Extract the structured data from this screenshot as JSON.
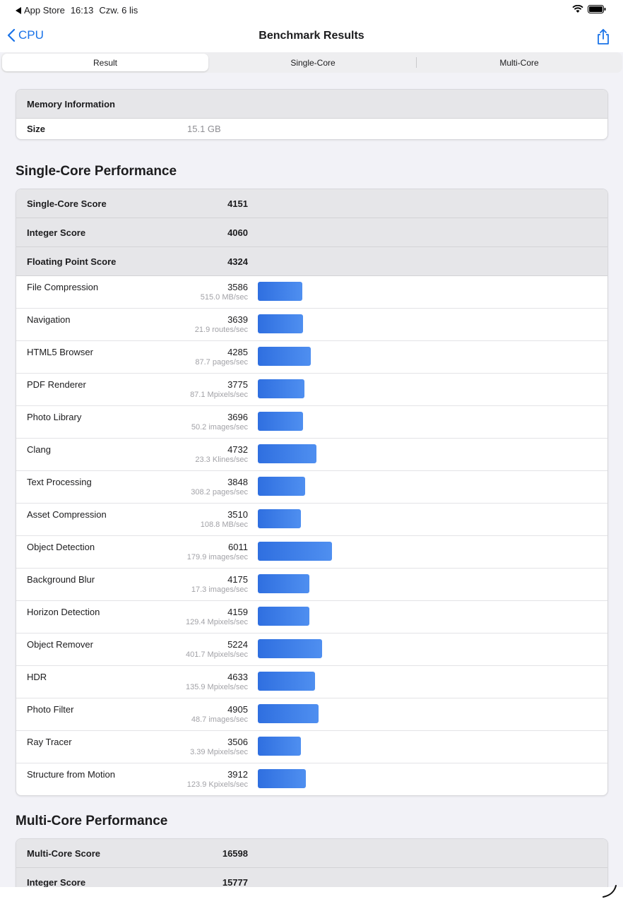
{
  "status": {
    "back_app": "App Store",
    "time": "16:13",
    "date": "Czw. 6 lis"
  },
  "nav": {
    "back_label": "CPU",
    "title": "Benchmark Results"
  },
  "tabs": [
    {
      "label": "Result",
      "active": true
    },
    {
      "label": "Single-Core",
      "active": false
    },
    {
      "label": "Multi-Core",
      "active": false
    }
  ],
  "memory": {
    "header": "Memory Information",
    "size_label": "Size",
    "size_value": "15.1 GB"
  },
  "single_core": {
    "section_title": "Single-Core Performance",
    "summary": [
      {
        "label": "Single-Core Score",
        "value": "4151"
      },
      {
        "label": "Integer Score",
        "value": "4060"
      },
      {
        "label": "Floating Point Score",
        "value": "4324"
      }
    ],
    "benchmarks": [
      {
        "name": "File Compression",
        "score": 3586,
        "rate": "515.0 MB/sec"
      },
      {
        "name": "Navigation",
        "score": 3639,
        "rate": "21.9 routes/sec"
      },
      {
        "name": "HTML5 Browser",
        "score": 4285,
        "rate": "87.7 pages/sec"
      },
      {
        "name": "PDF Renderer",
        "score": 3775,
        "rate": "87.1 Mpixels/sec"
      },
      {
        "name": "Photo Library",
        "score": 3696,
        "rate": "50.2 images/sec"
      },
      {
        "name": "Clang",
        "score": 4732,
        "rate": "23.3 Klines/sec"
      },
      {
        "name": "Text Processing",
        "score": 3848,
        "rate": "308.2 pages/sec"
      },
      {
        "name": "Asset Compression",
        "score": 3510,
        "rate": "108.8 MB/sec"
      },
      {
        "name": "Object Detection",
        "score": 6011,
        "rate": "179.9 images/sec"
      },
      {
        "name": "Background Blur",
        "score": 4175,
        "rate": "17.3 images/sec"
      },
      {
        "name": "Horizon Detection",
        "score": 4159,
        "rate": "129.4 Mpixels/sec"
      },
      {
        "name": "Object Remover",
        "score": 5224,
        "rate": "401.7 Mpixels/sec"
      },
      {
        "name": "HDR",
        "score": 4633,
        "rate": "135.9 Mpixels/sec"
      },
      {
        "name": "Photo Filter",
        "score": 4905,
        "rate": "48.7 images/sec"
      },
      {
        "name": "Ray Tracer",
        "score": 3506,
        "rate": "3.39 Mpixels/sec"
      },
      {
        "name": "Structure from Motion",
        "score": 3912,
        "rate": "123.9 Kpixels/sec"
      }
    ]
  },
  "multi_core": {
    "section_title": "Multi-Core Performance",
    "summary": [
      {
        "label": "Multi-Core Score",
        "value": "16598"
      },
      {
        "label": "Integer Score",
        "value": "15777"
      }
    ]
  },
  "colors": {
    "accent": "#1a73e8",
    "bar": "#3b7be8",
    "header_row": "#e6e6e9"
  }
}
